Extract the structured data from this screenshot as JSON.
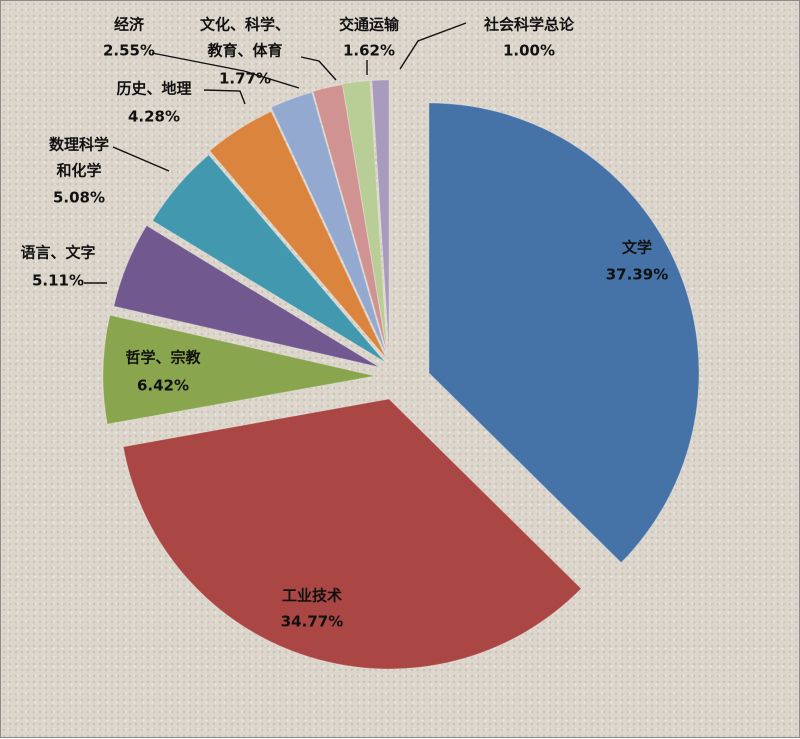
{
  "chart_data": {
    "type": "pie",
    "title": "",
    "start_angle_deg": -90,
    "slices": [
      {
        "label": "文学",
        "value": 37.39,
        "display": "37.39%",
        "color": "#4572a7"
      },
      {
        "label": "工业技术",
        "value": 34.77,
        "display": "34.77%",
        "color": "#aa4643"
      },
      {
        "label": "哲学、宗教",
        "value": 6.42,
        "display": "6.42%",
        "color": "#89a54e"
      },
      {
        "label": "语言、文字",
        "value": 5.11,
        "display": "5.11%",
        "color": "#71588f"
      },
      {
        "label": "数理科学和化学",
        "label_lines": [
          "数理科学",
          "和化学"
        ],
        "value": 5.08,
        "display": "5.08%",
        "color": "#4198af"
      },
      {
        "label": "历史、地理",
        "value": 4.28,
        "display": "4.28%",
        "color": "#db843d"
      },
      {
        "label": "经济",
        "value": 2.55,
        "display": "2.55%",
        "color": "#93a9cf"
      },
      {
        "label": "文化、科学、教育、体育",
        "label_lines": [
          "文化、科学、",
          "教育、体育"
        ],
        "value": 1.77,
        "display": "1.77%",
        "color": "#d19392"
      },
      {
        "label": "交通运输",
        "value": 1.62,
        "display": "1.62%",
        "color": "#b9cd96"
      },
      {
        "label": "社会科学总论",
        "value": 1.0,
        "display": "1.00%",
        "color": "#a99bbd"
      }
    ],
    "legend": "none"
  }
}
